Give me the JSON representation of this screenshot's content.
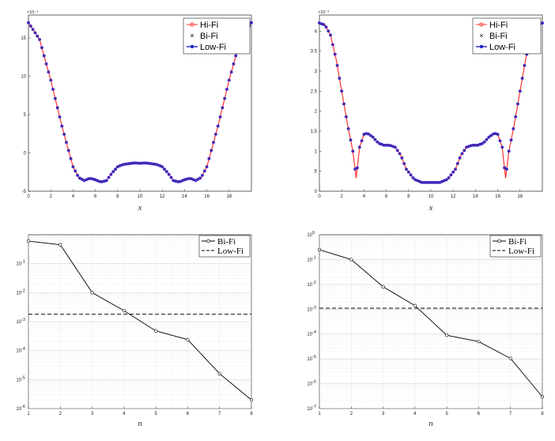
{
  "chart_data": [
    {
      "type": "line",
      "xlabel": "x",
      "ylabel": "",
      "y_multiplier": "×10⁻⁴",
      "xlim": [
        0,
        20
      ],
      "ylim": [
        -5,
        18
      ],
      "xticks": [
        "0",
        "2",
        "4",
        "6",
        "8",
        "10",
        "12",
        "14",
        "16",
        "18"
      ],
      "yticks": [
        "-5",
        "0",
        "5",
        "10",
        "15"
      ],
      "grid": false,
      "legend_position": "top-right",
      "series": [
        {
          "name": "Hi-Fi",
          "color": "#ff3333",
          "marker": "circle"
        },
        {
          "name": "Bi-Fi",
          "color": "#000000",
          "marker": "x"
        },
        {
          "name": "Low-Fi",
          "color": "#2222cc",
          "marker": "filled-circle"
        }
      ],
      "x": [
        0,
        1,
        2,
        3,
        4,
        4.5,
        5,
        5.5,
        6,
        6.5,
        7,
        7.5,
        8,
        8.5,
        9,
        9.5,
        10,
        10.5,
        11,
        11.5,
        12,
        12.5,
        13,
        13.5,
        14,
        14.5,
        15,
        15.5,
        16,
        17,
        18,
        19,
        20
      ],
      "y": [
        17,
        14.8,
        9.5,
        3.5,
        -1.8,
        -3.2,
        -3.6,
        -3.3,
        -3.5,
        -3.8,
        -3.6,
        -2.6,
        -1.8,
        -1.5,
        -1.4,
        -1.3,
        -1.35,
        -1.3,
        -1.4,
        -1.5,
        -1.8,
        -2.6,
        -3.6,
        -3.8,
        -3.5,
        -3.3,
        -3.6,
        -3.2,
        -1.8,
        3.5,
        9.5,
        14.8,
        17
      ]
    },
    {
      "type": "line",
      "xlabel": "x",
      "ylabel": "",
      "y_multiplier": "×10⁻³",
      "xlim": [
        0,
        20
      ],
      "ylim": [
        0,
        4.4
      ],
      "xticks": [
        "0",
        "2",
        "4",
        "6",
        "8",
        "10",
        "12",
        "14",
        "16",
        "18"
      ],
      "yticks": [
        "0",
        ".5",
        "1",
        "1.5",
        "2",
        "2.5",
        "3",
        "3.5",
        "4"
      ],
      "grid": false,
      "legend_position": "top-right",
      "series": [
        {
          "name": "Hi-Fi",
          "color": "#ff3333",
          "marker": "circle"
        },
        {
          "name": "Bi-Fi",
          "color": "#000000",
          "marker": "x"
        },
        {
          "name": "Low-Fi",
          "color": "#2222cc",
          "marker": "filled-circle"
        }
      ],
      "x": [
        0,
        0.5,
        1,
        1.5,
        2,
        2.5,
        3,
        3.3,
        3.6,
        4,
        4.3,
        4.8,
        5.3,
        5.8,
        6.3,
        6.8,
        7.3,
        7.8,
        8.5,
        9.2,
        10,
        10.8,
        11.5,
        12.2,
        12.7,
        13.2,
        13.7,
        14.2,
        14.7,
        15.2,
        15.7,
        16,
        16.4,
        16.7,
        17,
        17.5,
        18,
        18.5,
        19,
        19.5,
        20
      ],
      "y": [
        4.2,
        4.15,
        3.9,
        3.3,
        2.5,
        1.7,
        1.0,
        0.33,
        1.1,
        1.42,
        1.45,
        1.35,
        1.2,
        1.15,
        1.15,
        1.1,
        0.9,
        0.55,
        0.3,
        0.22,
        0.22,
        0.22,
        0.3,
        0.55,
        0.9,
        1.1,
        1.15,
        1.15,
        1.2,
        1.35,
        1.45,
        1.42,
        1.1,
        0.33,
        1.0,
        1.7,
        2.5,
        3.3,
        3.9,
        4.15,
        4.2
      ]
    },
    {
      "type": "line",
      "xlabel": "n",
      "ylabel": "",
      "yscale": "log",
      "xlim": [
        1,
        8
      ],
      "ylim": [
        1e-06,
        1
      ],
      "xticks": [
        "1",
        "2",
        "3",
        "4",
        "5",
        "6",
        "7",
        "8"
      ],
      "ytick_exponents": [
        "-1",
        "-2",
        "-3",
        "-4",
        "-5",
        "-6"
      ],
      "grid": true,
      "legend_position": "top-right",
      "series": [
        {
          "name": "Bi-Fi",
          "style": "solid-circle",
          "x": [
            1,
            2,
            3,
            4,
            5,
            6,
            7,
            8
          ],
          "values": [
            0.6,
            0.45,
            0.01,
            0.0024,
            0.00048,
            0.00024,
            1.6e-05,
            2e-06
          ]
        },
        {
          "name": "Low-Fi",
          "style": "dashed",
          "x": [
            1,
            8
          ],
          "values": [
            0.0018,
            0.0018
          ]
        }
      ]
    },
    {
      "type": "line",
      "xlabel": "n",
      "ylabel": "",
      "yscale": "log",
      "xlim": [
        1,
        8
      ],
      "ylim": [
        1e-07,
        1
      ],
      "xticks": [
        "1",
        "2",
        "3",
        "4",
        "5",
        "6",
        "7",
        "8"
      ],
      "ytick_exponents": [
        "0",
        "-1",
        "-2",
        "-3",
        "-4",
        "-5",
        "-6",
        "-7"
      ],
      "grid": true,
      "legend_position": "top-right",
      "series": [
        {
          "name": "Bi-Fi",
          "style": "solid-circle",
          "x": [
            1,
            2,
            3,
            4,
            5,
            6,
            7,
            8
          ],
          "values": [
            0.25,
            0.1,
            0.008,
            0.0014,
            9e-05,
            5e-05,
            1.05e-05,
            3e-07
          ]
        },
        {
          "name": "Low-Fi",
          "style": "dashed",
          "x": [
            1,
            8
          ],
          "values": [
            0.0011,
            0.0011
          ]
        }
      ]
    }
  ]
}
